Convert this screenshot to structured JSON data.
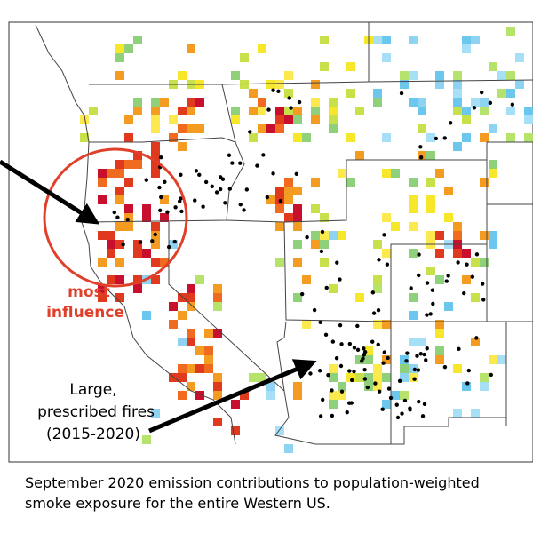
{
  "annotations": {
    "most_influence": [
      "most",
      "influence"
    ],
    "prescribed_fires": [
      "Large,",
      "prescribed fires",
      "(2015-2020)"
    ]
  },
  "caption": [
    "September 2020 emission contributions to population-weighted",
    "smoke exposure for the entire Western US."
  ]
}
